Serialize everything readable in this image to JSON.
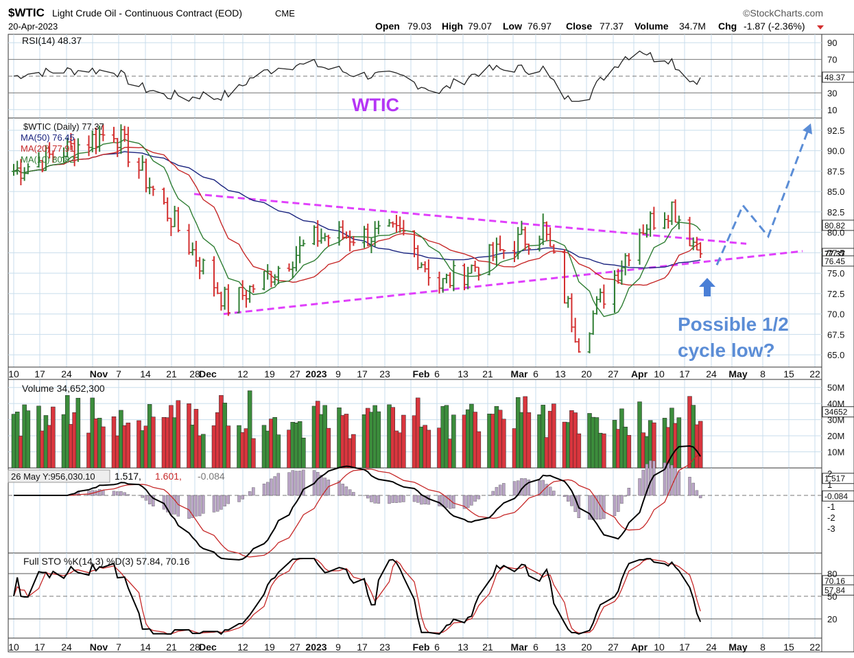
{
  "header": {
    "symbol": "$WTIC",
    "name": "Light Crude Oil - Continuous Contract (EOD)",
    "exchange": "CME",
    "date": "20-Apr-2023",
    "brand": "©StockCharts.com",
    "open_label": "Open",
    "open": "79.03",
    "high_label": "High",
    "high": "79.07",
    "low_label": "Low",
    "low": "76.97",
    "close_label": "Close",
    "close": "77.37",
    "volume_label": "Volume",
    "volume": "34.7M",
    "chg_label": "Chg",
    "chg": "-1.87 (-2.36%)"
  },
  "colors": {
    "up": "#2e7d32",
    "down": "#d32f2f",
    "ma50": "#1a237e",
    "ma20": "#c62828",
    "ma10": "#2e7d32",
    "trend": "#e040fb",
    "annotation": "#5b8dd6",
    "grid": "#c8ddec",
    "title_purple": "#b535f5"
  },
  "xaxis_ticks": [
    "10",
    "17",
    "24",
    "Nov",
    "7",
    "14",
    "21",
    "28",
    "Dec",
    "12",
    "19",
    "27",
    "2023",
    "9",
    "17",
    "23",
    "Feb",
    "6",
    "13",
    "21",
    "Mar",
    "6",
    "13",
    "20",
    "27",
    "Apr",
    "10",
    "17",
    "24",
    "May",
    "8",
    "15",
    "22"
  ],
  "rsi": {
    "legend": "RSI(14) 48.37",
    "value_tag": "48.37",
    "ticks": [
      "90",
      "70",
      "30",
      "10"
    ],
    "watermark": "WTIC"
  },
  "price": {
    "legend_main": "$WTIC (Daily) 77.37",
    "legend_ma50": "MA(50) 76.45",
    "legend_ma20": "MA(20) 77.91",
    "legend_ma10": "MA(10) 80.82",
    "ticks": [
      "92.5",
      "90.0",
      "87.5",
      "85.0",
      "82.5",
      "80.0",
      "77.5",
      "75.0",
      "72.5",
      "70.0",
      "67.5",
      "65.0"
    ],
    "tags": [
      "80.82",
      "77.37",
      "76.45"
    ],
    "annotation_line1": "Possible 1/2",
    "annotation_line2": "cycle low?"
  },
  "volume": {
    "legend": "Volume 34,652,300",
    "ticks": [
      "50M",
      "40M",
      "30M",
      "20M",
      "10M"
    ],
    "tag": "34652"
  },
  "macd": {
    "legend_box": "26 May Y:956,030.10",
    "v1": "1.517,",
    "v2": "1.601,",
    "v3": "-0.084",
    "ticks": [
      "2",
      "1",
      "-1",
      "-2",
      "-3"
    ],
    "tags": [
      "1.517",
      "-0.084"
    ]
  },
  "sto": {
    "legend": "Full STO %K(14,3) %D(3) 57.84, 70.16",
    "ticks": [
      "80",
      "50",
      "20"
    ],
    "tags": [
      "70.16",
      "57.84"
    ]
  },
  "chart_data": {
    "type": "line",
    "title": "$WTIC Light Crude Oil - Continuous Contract (EOD)",
    "ylim": [
      63.5,
      94
    ],
    "x_range": [
      "2022-10-10",
      "2023-05-22"
    ],
    "key_points": [
      {
        "x": "2022-10-10",
        "close": 87.5
      },
      {
        "x": "2022-11-07",
        "close": 92.5
      },
      {
        "x": "2022-12-09",
        "close": 71.0
      },
      {
        "x": "2023-01-03",
        "close": 79.5
      },
      {
        "x": "2023-01-27",
        "close": 79.7
      },
      {
        "x": "2023-02-06",
        "close": 73.5
      },
      {
        "x": "2023-03-07",
        "close": 80.5
      },
      {
        "x": "2023-03-17",
        "close": 66.7
      },
      {
        "x": "2023-04-03",
        "close": 80.4
      },
      {
        "x": "2023-04-12",
        "close": 83.3
      },
      {
        "x": "2023-04-20",
        "close": 77.37
      }
    ],
    "series": [
      {
        "name": "MA(50)",
        "last": 76.45
      },
      {
        "name": "MA(20)",
        "last": 77.91
      },
      {
        "name": "MA(10)",
        "last": 80.82
      }
    ]
  }
}
